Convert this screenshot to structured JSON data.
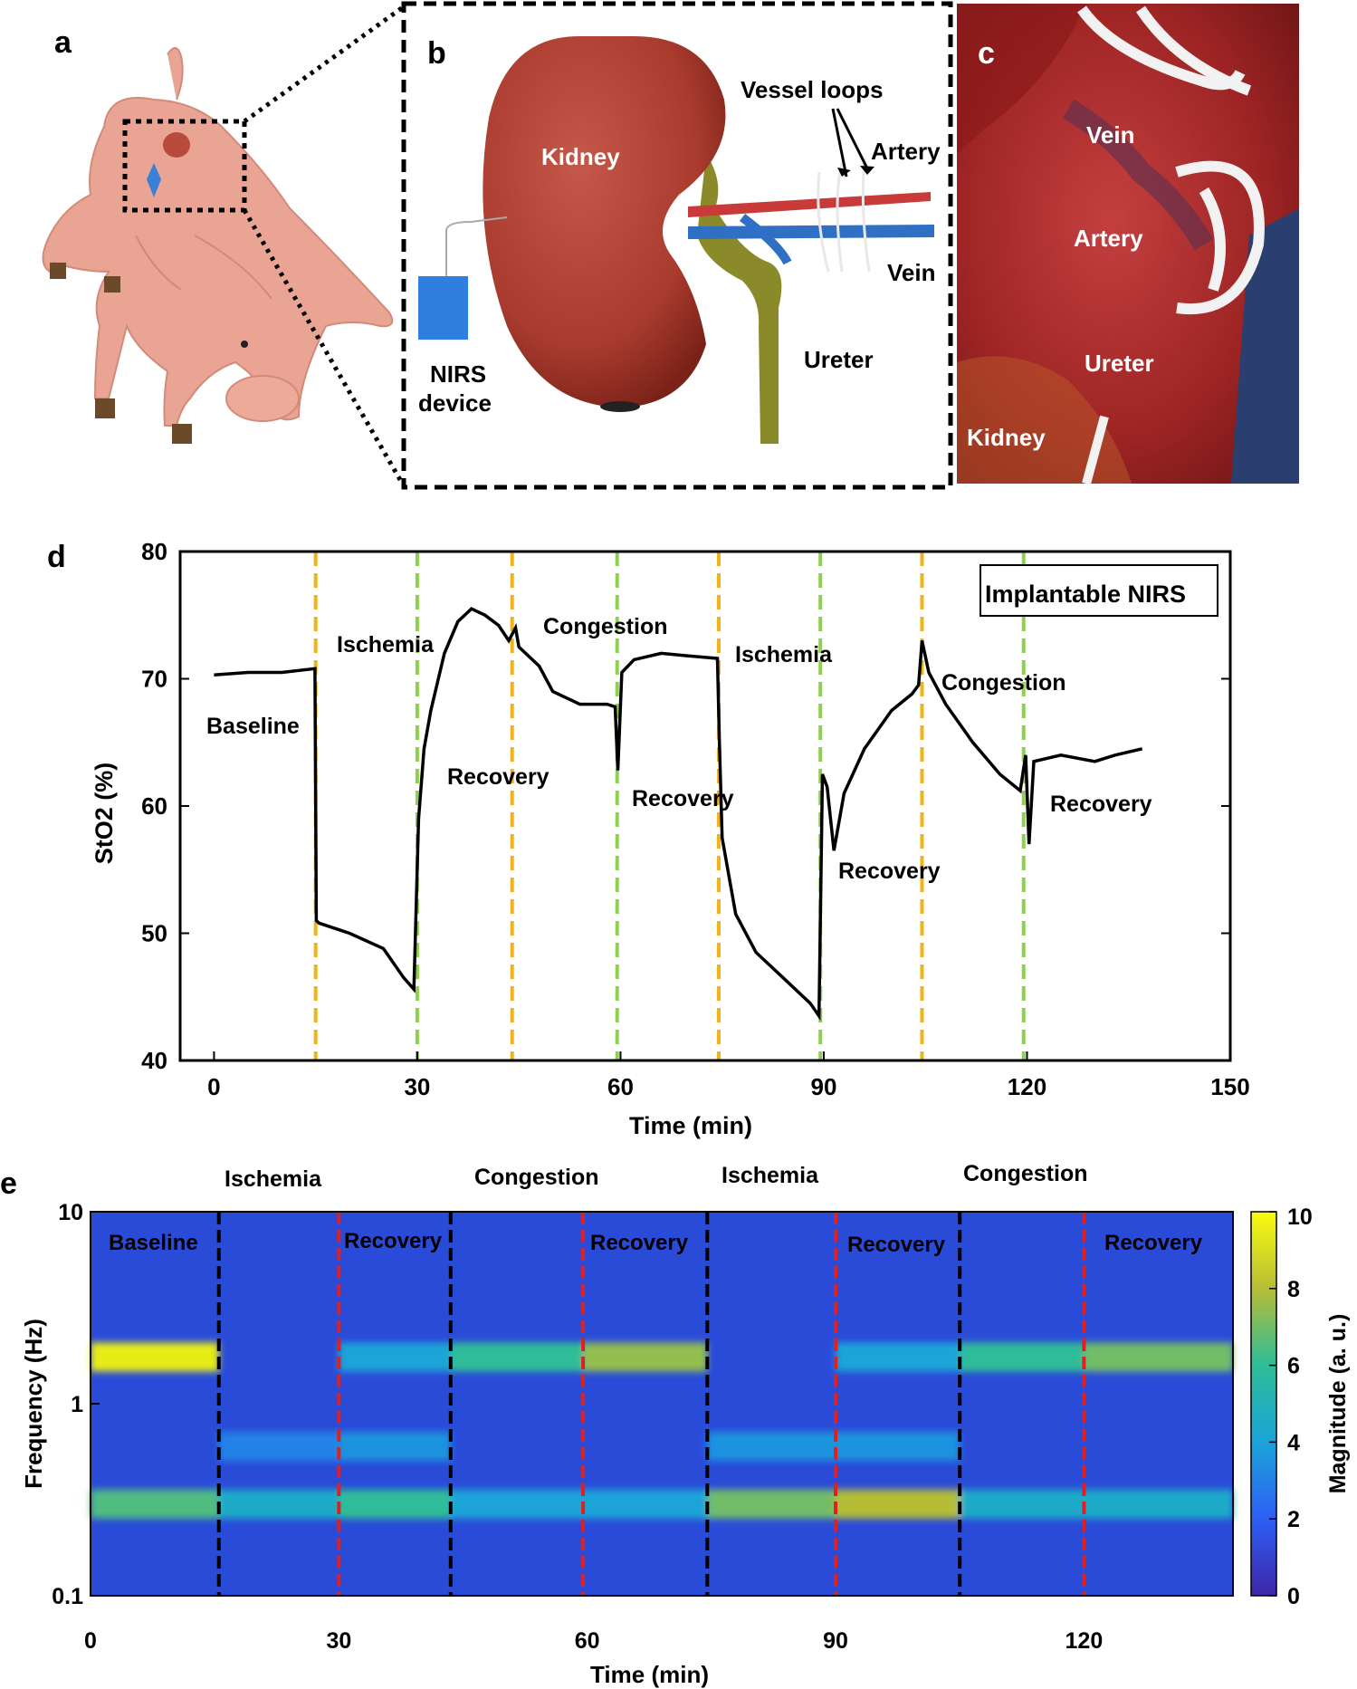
{
  "panels": {
    "a": "a",
    "b": "b",
    "c": "c",
    "d": "d",
    "e": "e"
  },
  "panel_b": {
    "kidney": "Kidney",
    "vessel_loops": "Vessel loops",
    "artery": "Artery",
    "vein": "Vein",
    "ureter": "Ureter",
    "nirs_line1": "NIRS",
    "nirs_line2": "device"
  },
  "panel_c": {
    "vein": "Vein",
    "artery": "Artery",
    "ureter": "Ureter",
    "kidney": "Kidney"
  },
  "colors": {
    "kidney": "#a83a2e",
    "artery": "#c93a3a",
    "vein": "#2f6fc4",
    "ureter": "#8a8a2a",
    "nirs": "#2f7fe0",
    "ischemia_line": "#f2b21a",
    "recovery_line": "#8fd14f",
    "spec_black": "#000000",
    "spec_red": "#e02020"
  },
  "chart_data": [
    {
      "type": "line",
      "id": "d",
      "title": "",
      "legend": "Implantable NIRS",
      "xlabel": "Time (min)",
      "ylabel": "StO2 (%)",
      "xlim": [
        -5,
        150
      ],
      "ylim": [
        40,
        80
      ],
      "xticks": [
        0,
        30,
        60,
        90,
        120,
        150
      ],
      "yticks": [
        40,
        50,
        60,
        70,
        80
      ],
      "x": [
        0,
        5,
        10,
        14.9,
        15.1,
        15.5,
        20,
        25,
        28,
        29.5,
        30.2,
        31,
        32,
        34,
        36,
        38,
        40,
        42,
        43.5,
        44.5,
        45,
        48,
        50,
        52,
        54,
        56,
        58,
        59.2,
        59.6,
        60.2,
        62,
        66,
        70,
        74.3,
        74.6,
        75,
        77,
        80,
        84,
        88,
        89.3,
        89.8,
        90.5,
        91.5,
        93,
        96,
        100,
        103,
        104,
        104.5,
        105.5,
        108,
        112,
        116,
        119,
        119.8,
        120.3,
        121,
        125,
        130,
        133,
        137
      ],
      "values": [
        70.3,
        70.5,
        70.5,
        70.8,
        51.0,
        50.8,
        50.0,
        48.8,
        46.5,
        45.6,
        59.0,
        64.5,
        67.5,
        72.0,
        74.5,
        75.5,
        75.0,
        74.2,
        73.0,
        74.0,
        72.5,
        71.0,
        69.0,
        68.5,
        68.0,
        68.0,
        68.0,
        67.8,
        62.8,
        70.5,
        71.5,
        72.0,
        71.8,
        71.6,
        65.0,
        57.5,
        51.5,
        48.5,
        46.5,
        44.5,
        43.5,
        62.5,
        61.5,
        56.5,
        61.0,
        64.5,
        67.5,
        68.8,
        69.5,
        73.0,
        70.5,
        68.0,
        65.0,
        62.5,
        61.2,
        64.0,
        57.0,
        63.5,
        64.0,
        63.5,
        64.0,
        64.5
      ],
      "event_lines": [
        {
          "x": 15,
          "kind": "ischemia_start"
        },
        {
          "x": 30,
          "kind": "recovery_start"
        },
        {
          "x": 44,
          "kind": "congestion_start"
        },
        {
          "x": 59.5,
          "kind": "recovery_start"
        },
        {
          "x": 74.5,
          "kind": "ischemia_start"
        },
        {
          "x": 89.5,
          "kind": "recovery_start"
        },
        {
          "x": 104.5,
          "kind": "congestion_start"
        },
        {
          "x": 119.5,
          "kind": "recovery_start"
        }
      ],
      "annotations": [
        "Baseline",
        "Ischemia",
        "Recovery",
        "Congestion",
        "Recovery",
        "Ischemia",
        "Recovery",
        "Congestion",
        "Recovery"
      ]
    },
    {
      "type": "heatmap",
      "id": "e",
      "xlabel": "Time (min)",
      "ylabel": "Frequency (Hz)",
      "colorbar_label": "Magnitude (a. u.)",
      "colorbar_ticks": [
        0,
        2,
        4,
        6,
        8,
        10
      ],
      "clim": [
        0,
        10
      ],
      "yscale": "log",
      "ylim": [
        0.1,
        10
      ],
      "yticks": [
        "0.1",
        "1",
        "10"
      ],
      "xticks": [
        "0",
        "30",
        "60",
        "90",
        "120"
      ],
      "xtick_values": [
        0,
        30,
        60,
        90,
        120
      ],
      "xlim": [
        0,
        138
      ],
      "top_labels": [
        "Ischemia",
        "Congestion",
        "Ischemia",
        "Congestion"
      ],
      "inner_labels": [
        "Baseline",
        "Recovery",
        "Recovery",
        "Recovery",
        "Recovery"
      ],
      "divider_times": [
        15.5,
        30,
        43.5,
        59.5,
        74.5,
        90,
        105,
        120
      ],
      "divider_kinds": [
        "black",
        "red",
        "black",
        "red",
        "black",
        "red",
        "black",
        "red"
      ],
      "bands": [
        {
          "freq_hz": 1.75,
          "segments": [
            {
              "from": 0,
              "to": 15.5,
              "magnitude": 9.5
            },
            {
              "from": 30,
              "to": 43.5,
              "magnitude": 4.0
            },
            {
              "from": 43.5,
              "to": 59.5,
              "magnitude": 6.0
            },
            {
              "from": 59.5,
              "to": 74.5,
              "magnitude": 7.5
            },
            {
              "from": 90,
              "to": 105,
              "magnitude": 4.0
            },
            {
              "from": 105,
              "to": 120,
              "magnitude": 6.0
            },
            {
              "from": 120,
              "to": 138,
              "magnitude": 7.0
            }
          ]
        },
        {
          "freq_hz": 0.3,
          "segments": [
            {
              "from": 0,
              "to": 15.5,
              "magnitude": 6.5
            },
            {
              "from": 15.5,
              "to": 30,
              "magnitude": 4.5
            },
            {
              "from": 30,
              "to": 43.5,
              "magnitude": 6.0
            },
            {
              "from": 43.5,
              "to": 74.5,
              "magnitude": 4.0
            },
            {
              "from": 74.5,
              "to": 90,
              "magnitude": 7.0
            },
            {
              "from": 90,
              "to": 105,
              "magnitude": 8.0
            },
            {
              "from": 105,
              "to": 138,
              "magnitude": 4.5
            }
          ]
        },
        {
          "freq_hz": 0.6,
          "segments": [
            {
              "from": 15.5,
              "to": 30,
              "magnitude": 3.0
            },
            {
              "from": 30,
              "to": 43.5,
              "magnitude": 3.5
            },
            {
              "from": 74.5,
              "to": 90,
              "magnitude": 3.5
            },
            {
              "from": 90,
              "to": 105,
              "magnitude": 3.5
            }
          ]
        }
      ]
    }
  ]
}
